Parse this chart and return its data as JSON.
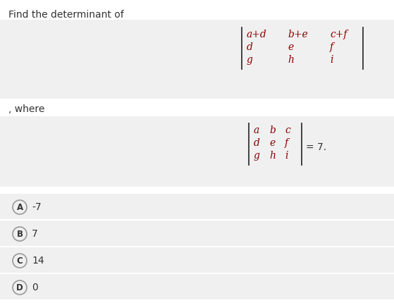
{
  "title": "Find the determinant of",
  "white_bg": "#ffffff",
  "panel_bg": "#f0f0f0",
  "matrix1_rows": [
    [
      "a+d",
      "b+e",
      "c+f"
    ],
    [
      "d",
      "e",
      "f"
    ],
    [
      "g",
      "h",
      "i"
    ]
  ],
  "where_text": ", where",
  "matrix2_rows": [
    [
      "a",
      "b",
      "c"
    ],
    [
      "d",
      "e",
      "f"
    ],
    [
      "g",
      "h",
      "i"
    ]
  ],
  "equals_text": "= 7.",
  "options": [
    {
      "label": "A",
      "value": "-7"
    },
    {
      "label": "B",
      "value": "7"
    },
    {
      "label": "C",
      "value": "14"
    },
    {
      "label": "D",
      "value": "0"
    }
  ],
  "text_color": "#333333",
  "matrix_color": "#8B0000",
  "option_circle_color": "#999999"
}
